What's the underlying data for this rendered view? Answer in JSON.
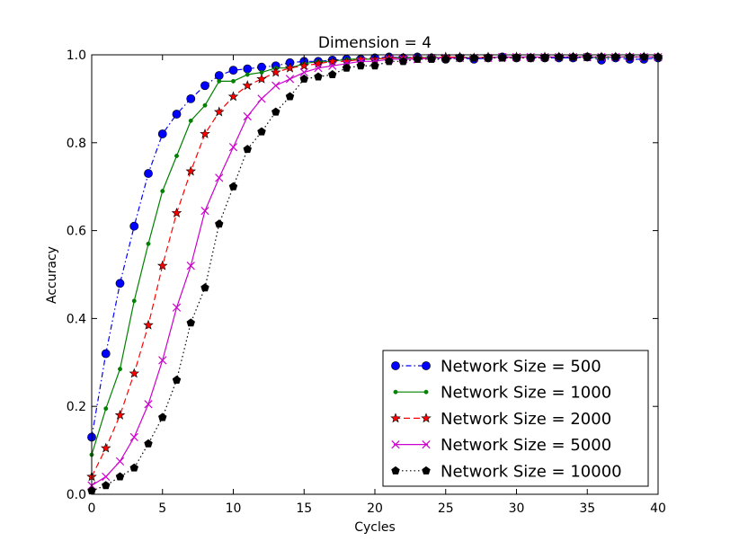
{
  "chart_data": {
    "type": "line",
    "title": "Dimension = 4",
    "xlabel": "Cycles",
    "ylabel": "Accuracy",
    "xlim": [
      0,
      40
    ],
    "ylim": [
      0.0,
      1.0
    ],
    "xticks": [
      "0",
      "5",
      "10",
      "15",
      "20",
      "25",
      "30",
      "35",
      "40"
    ],
    "yticks": [
      "0.0",
      "0.2",
      "0.4",
      "0.6",
      "0.8",
      "1.0"
    ],
    "grid": false,
    "legend_position": "lower-right",
    "series": [
      {
        "name": "Network Size = 500",
        "color": "#0000ff",
        "linestyle": "dashdot",
        "marker": "circle",
        "x": [
          0,
          1,
          2,
          3,
          4,
          5,
          6,
          7,
          8,
          9,
          10,
          11,
          12,
          13,
          14,
          15,
          16,
          17,
          18,
          19,
          20,
          21,
          22,
          23,
          24,
          25,
          26,
          27,
          28,
          29,
          30,
          31,
          32,
          33,
          34,
          35,
          36,
          37,
          38,
          39,
          40
        ],
        "values": [
          0.13,
          0.32,
          0.48,
          0.61,
          0.73,
          0.82,
          0.865,
          0.9,
          0.93,
          0.953,
          0.965,
          0.968,
          0.972,
          0.975,
          0.982,
          0.985,
          0.985,
          0.988,
          0.99,
          0.99,
          0.993,
          0.995,
          0.993,
          0.995,
          0.993,
          0.99,
          0.993,
          0.99,
          0.993,
          0.995,
          0.993,
          0.993,
          0.993,
          0.993,
          0.993,
          0.995,
          0.988,
          0.993,
          0.99,
          0.99,
          0.993
        ]
      },
      {
        "name": "Network Size = 1000",
        "color": "#008000",
        "linestyle": "solid",
        "marker": "point",
        "x": [
          0,
          1,
          2,
          3,
          4,
          5,
          6,
          7,
          8,
          9,
          10,
          11,
          12,
          13,
          14,
          15,
          16,
          17,
          18,
          19,
          20,
          21,
          22,
          23,
          24,
          25,
          26,
          27,
          28,
          29,
          30,
          31,
          32,
          33,
          34,
          35,
          36,
          37,
          38,
          39,
          40
        ],
        "values": [
          0.09,
          0.195,
          0.285,
          0.44,
          0.57,
          0.69,
          0.77,
          0.85,
          0.885,
          0.94,
          0.94,
          0.955,
          0.96,
          0.97,
          0.97,
          0.98,
          0.985,
          0.985,
          0.99,
          0.99,
          0.99,
          0.993,
          0.993,
          0.993,
          0.995,
          0.993,
          0.995,
          0.993,
          0.993,
          0.995,
          0.995,
          0.995,
          0.995,
          0.995,
          0.995,
          0.995,
          0.993,
          0.995,
          0.995,
          0.995,
          0.995
        ]
      },
      {
        "name": "Network Size = 2000",
        "color": "#ff0000",
        "linestyle": "dashed",
        "marker": "star",
        "x": [
          0,
          1,
          2,
          3,
          4,
          5,
          6,
          7,
          8,
          9,
          10,
          11,
          12,
          13,
          14,
          15,
          16,
          17,
          18,
          19,
          20,
          21,
          22,
          23,
          24,
          25,
          26,
          27,
          28,
          29,
          30,
          31,
          32,
          33,
          34,
          35,
          36,
          37,
          38,
          39,
          40
        ],
        "values": [
          0.04,
          0.105,
          0.18,
          0.275,
          0.385,
          0.52,
          0.64,
          0.735,
          0.82,
          0.87,
          0.905,
          0.93,
          0.945,
          0.96,
          0.97,
          0.975,
          0.98,
          0.985,
          0.985,
          0.99,
          0.99,
          0.993,
          0.993,
          0.993,
          0.993,
          0.995,
          0.995,
          0.993,
          0.995,
          0.993,
          0.995,
          0.993,
          0.995,
          0.995,
          0.995,
          0.995,
          0.995,
          0.995,
          0.995,
          0.995,
          0.995
        ]
      },
      {
        "name": "Network Size = 5000",
        "color": "#cc00cc",
        "linestyle": "solid",
        "marker": "x",
        "x": [
          0,
          1,
          2,
          3,
          4,
          5,
          6,
          7,
          8,
          9,
          10,
          11,
          12,
          13,
          14,
          15,
          16,
          17,
          18,
          19,
          20,
          21,
          22,
          23,
          24,
          25,
          26,
          27,
          28,
          29,
          30,
          31,
          32,
          33,
          34,
          35,
          36,
          37,
          38,
          39,
          40
        ],
        "values": [
          0.02,
          0.04,
          0.075,
          0.13,
          0.205,
          0.305,
          0.425,
          0.52,
          0.645,
          0.72,
          0.79,
          0.86,
          0.9,
          0.93,
          0.945,
          0.96,
          0.97,
          0.975,
          0.98,
          0.985,
          0.985,
          0.99,
          0.99,
          0.99,
          0.993,
          0.993,
          0.993,
          0.993,
          0.993,
          0.995,
          0.995,
          0.995,
          0.995,
          0.995,
          0.995,
          0.995,
          0.995,
          0.995,
          0.995,
          0.995,
          0.995
        ]
      },
      {
        "name": "Network Size = 10000",
        "color": "#000000",
        "linestyle": "dotted",
        "marker": "pentagon",
        "x": [
          0,
          1,
          2,
          3,
          4,
          5,
          6,
          7,
          8,
          9,
          10,
          11,
          12,
          13,
          14,
          15,
          16,
          17,
          18,
          19,
          20,
          21,
          22,
          23,
          24,
          25,
          26,
          27,
          28,
          29,
          30,
          31,
          32,
          33,
          34,
          35,
          36,
          37,
          38,
          39,
          40
        ],
        "values": [
          0.008,
          0.02,
          0.04,
          0.06,
          0.115,
          0.175,
          0.26,
          0.39,
          0.47,
          0.615,
          0.7,
          0.785,
          0.825,
          0.87,
          0.905,
          0.945,
          0.95,
          0.955,
          0.97,
          0.975,
          0.975,
          0.985,
          0.985,
          0.99,
          0.99,
          0.99,
          0.993,
          0.993,
          0.993,
          0.993,
          0.993,
          0.993,
          0.993,
          0.995,
          0.995,
          0.995,
          0.995,
          0.995,
          0.995,
          0.995,
          0.995
        ]
      }
    ]
  }
}
